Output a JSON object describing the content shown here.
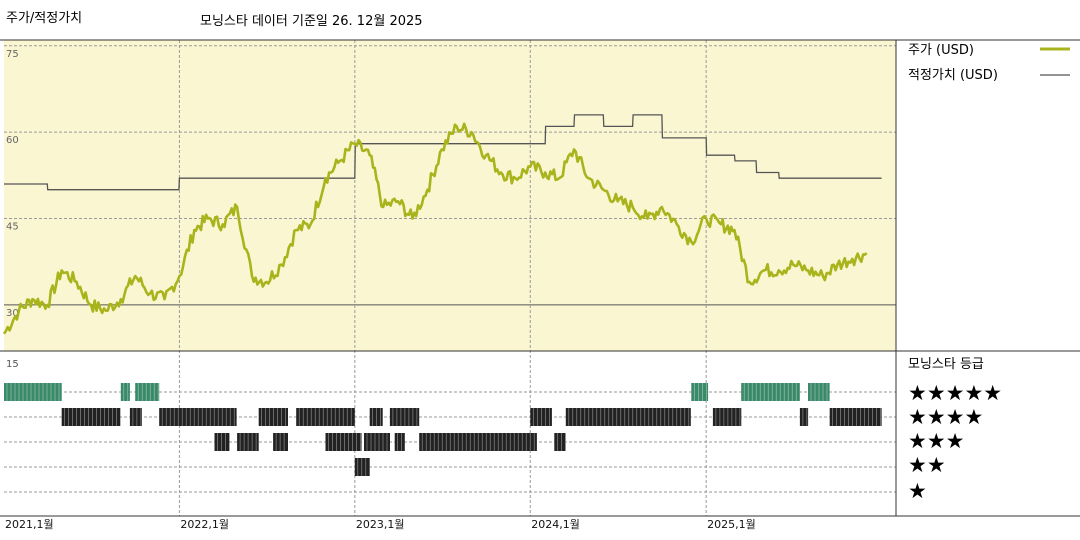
{
  "header": {
    "title": "주가/적정가치",
    "subtitle": "모닝스타 데이터 기준일 26. 12월 2025"
  },
  "legend": {
    "price": "주가 (USD)",
    "fair": "적정가치 (USD)",
    "rating_title": "모닝스타 등급",
    "stars": [
      "★★★★★",
      "★★★★",
      "★★★",
      "★★",
      "★"
    ]
  },
  "colors": {
    "price": "#a9b41c",
    "fair": "#555555",
    "panel": "#faf6d2",
    "five_star": "#3a8a6a",
    "bars": "#222222"
  },
  "chart_data": [
    {
      "type": "line",
      "ylim": [
        22,
        76
      ],
      "yticks": [
        30,
        45,
        60,
        75
      ],
      "xlim": [
        "2021-01-01",
        "2026-01-31"
      ],
      "x_ticks": [
        {
          "x": "2021-01-01",
          "label": "2021,1월"
        },
        {
          "x": "2022-01-01",
          "label": "2022,1월"
        },
        {
          "x": "2023-01-01",
          "label": "2023,1월"
        },
        {
          "x": "2024-01-01",
          "label": "2024,1월"
        },
        {
          "x": "2025-01-01",
          "label": "2025,1월"
        }
      ],
      "series": [
        {
          "name": "주가 (USD)",
          "x": [
            "2021-01-01",
            "2021-02-01",
            "2021-03-01",
            "2021-04-01",
            "2021-05-01",
            "2021-06-01",
            "2021-07-01",
            "2021-08-01",
            "2021-09-01",
            "2021-10-01",
            "2021-11-01",
            "2021-12-01",
            "2022-01-01",
            "2022-02-01",
            "2022-03-01",
            "2022-04-01",
            "2022-05-01",
            "2022-06-01",
            "2022-07-01",
            "2022-08-01",
            "2022-09-01",
            "2022-10-01",
            "2022-11-01",
            "2022-12-01",
            "2023-01-01",
            "2023-02-01",
            "2023-03-01",
            "2023-04-01",
            "2023-05-01",
            "2023-06-01",
            "2023-07-01",
            "2023-08-01",
            "2023-09-01",
            "2023-10-01",
            "2023-11-01",
            "2023-12-01",
            "2024-01-01",
            "2024-02-01",
            "2024-03-01",
            "2024-04-01",
            "2024-05-01",
            "2024-06-01",
            "2024-07-01",
            "2024-08-01",
            "2024-09-01",
            "2024-10-01",
            "2024-11-01",
            "2024-12-01",
            "2025-01-01",
            "2025-02-01",
            "2025-03-01",
            "2025-04-01",
            "2025-05-01",
            "2025-06-01",
            "2025-07-01",
            "2025-08-01",
            "2025-09-01",
            "2025-10-01",
            "2025-11-01",
            "2025-12-01"
          ],
          "values": [
            25,
            29,
            31,
            30,
            36,
            34,
            30,
            29,
            31,
            35,
            32,
            31,
            35,
            43,
            45,
            44,
            47,
            35,
            34,
            37,
            43,
            44,
            52,
            55,
            58,
            56,
            47,
            48,
            45,
            50,
            57,
            61,
            60,
            56,
            53,
            52,
            54,
            53,
            52,
            57,
            52,
            50,
            48,
            47,
            45,
            47,
            44,
            41,
            45,
            44,
            43,
            34,
            36,
            36,
            37,
            36,
            35,
            37,
            38,
            39
          ],
          "color": "#a9b41c"
        },
        {
          "name": "적정가치 (USD)",
          "x": [
            "2021-01-01",
            "2021-04-01",
            "2021-04-02",
            "2021-12-31",
            "2022-01-01",
            "2022-12-31",
            "2023-01-01",
            "2023-01-02",
            "2023-12-31",
            "2024-01-01",
            "2024-02-01",
            "2024-02-02",
            "2024-04-01",
            "2024-04-02",
            "2024-06-01",
            "2024-06-02",
            "2024-08-01",
            "2024-08-02",
            "2024-10-01",
            "2024-10-02",
            "2025-01-01",
            "2025-01-02",
            "2025-03-01",
            "2025-03-02",
            "2025-04-15",
            "2025-04-16",
            "2025-06-01",
            "2025-06-02",
            "2026-01-01"
          ],
          "values": [
            51,
            51,
            50,
            50,
            52,
            52,
            52,
            58,
            58,
            58,
            58,
            61,
            61,
            63,
            63,
            61,
            61,
            63,
            63,
            59,
            59,
            56,
            56,
            55,
            55,
            53,
            53,
            52,
            52
          ],
          "color": "#555555"
        }
      ]
    },
    {
      "type": "heatmap",
      "title": "모닝스타 등급",
      "ylim": [
        0,
        15
      ],
      "yticks": [
        15
      ],
      "rows": [
        "★★★★★",
        "★★★★",
        "★★★",
        "★★",
        "★"
      ],
      "periods": {
        "★★★★★": [
          [
            "2021-01-01",
            "2021-05-01"
          ],
          [
            "2021-09-01",
            "2021-09-20"
          ],
          [
            "2021-10-01",
            "2021-11-20"
          ],
          [
            "2024-12-01",
            "2025-01-05"
          ],
          [
            "2025-03-15",
            "2025-07-15"
          ],
          [
            "2025-08-01",
            "2025-09-15"
          ]
        ],
        "★★★★": [
          [
            "2021-05-01",
            "2021-08-31"
          ],
          [
            "2021-09-20",
            "2021-10-15"
          ],
          [
            "2021-11-20",
            "2022-04-30"
          ],
          [
            "2022-06-15",
            "2022-08-15"
          ],
          [
            "2022-09-01",
            "2023-01-01"
          ],
          [
            "2023-02-01",
            "2023-02-28"
          ],
          [
            "2023-03-15",
            "2023-05-15"
          ],
          [
            "2024-01-01",
            "2024-02-15"
          ],
          [
            "2024-03-15",
            "2024-11-30"
          ],
          [
            "2025-01-15",
            "2025-03-15"
          ],
          [
            "2025-07-15",
            "2025-08-01"
          ],
          [
            "2025-09-15",
            "2026-01-01"
          ]
        ],
        "★★★": [
          [
            "2022-03-15",
            "2022-04-15"
          ],
          [
            "2022-05-01",
            "2022-06-15"
          ],
          [
            "2022-07-15",
            "2022-08-15"
          ],
          [
            "2022-11-01",
            "2023-01-15"
          ],
          [
            "2023-01-20",
            "2023-03-15"
          ],
          [
            "2023-03-25",
            "2023-04-15"
          ],
          [
            "2023-05-15",
            "2024-01-15"
          ],
          [
            "2024-02-20",
            "2024-03-15"
          ]
        ],
        "★★": [
          [
            "2023-01-01",
            "2023-02-01"
          ]
        ],
        "★": []
      }
    }
  ]
}
